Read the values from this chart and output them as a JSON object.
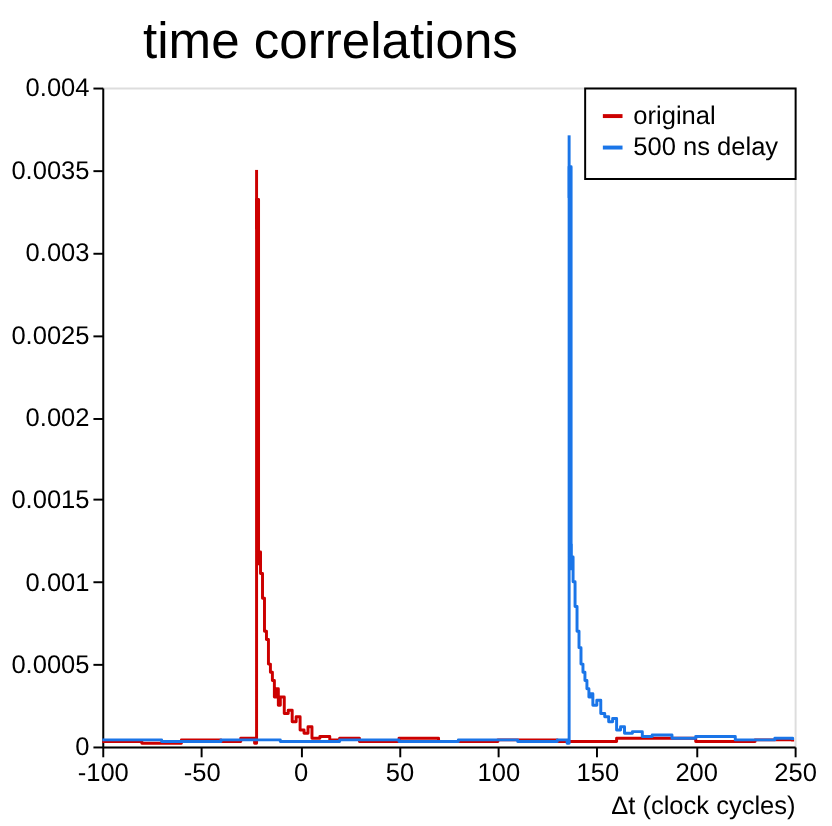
{
  "chart_data": {
    "type": "step",
    "title": "time correlations",
    "xlabel": "Δt (clock cycles)",
    "xlim": [
      -100,
      250
    ],
    "xticks": [
      -100,
      -50,
      0,
      50,
      100,
      150,
      200,
      250
    ],
    "ylim": [
      0,
      0.004
    ],
    "yticks": [
      0,
      0.0005,
      0.001,
      0.0015,
      0.002,
      0.0025,
      0.003,
      0.0035,
      0.004
    ],
    "grid": false,
    "legend": "top right",
    "series": [
      {
        "name": "original",
        "color": "#cc0000",
        "x": [
          -100,
          -80,
          -60,
          -40,
          -30,
          -23,
          -22,
          -21,
          -20,
          -19,
          -18,
          -17,
          -16,
          -15,
          -14,
          -13,
          -12,
          -11,
          -10,
          -8,
          -6,
          -4,
          -2,
          0,
          2,
          4,
          6,
          10,
          15,
          20,
          30,
          50,
          70,
          100,
          130,
          160,
          200,
          230,
          249
        ],
        "values": [
          3e-05,
          2e-05,
          4e-05,
          3e-05,
          5e-05,
          2e-05,
          0.00332,
          0.00118,
          0.00105,
          0.0009,
          0.0007,
          0.00065,
          0.0005,
          0.00045,
          0.0004,
          0.0003,
          0.00035,
          0.00025,
          0.0003,
          0.0002,
          0.00022,
          0.00015,
          0.00018,
          0.0001,
          8e-05,
          0.00012,
          5e-05,
          6e-05,
          4e-05,
          5e-05,
          3e-05,
          5e-05,
          3e-05,
          4e-05,
          3e-05,
          5e-05,
          3e-05,
          4e-05,
          3e-05
        ],
        "errors": [
          null,
          null,
          null,
          null,
          null,
          null,
          0.00018,
          8e-05,
          null,
          null,
          null,
          null,
          null,
          null,
          null,
          null,
          null,
          null,
          null,
          null,
          null,
          null,
          null,
          null,
          null,
          null,
          null,
          null,
          null,
          null,
          null,
          null,
          null,
          null,
          null,
          null,
          null,
          null,
          null
        ]
      },
      {
        "name": "500 ns delay",
        "color": "#1a75e8",
        "x": [
          -100,
          -70,
          -40,
          -10,
          20,
          50,
          80,
          110,
          130,
          135,
          136,
          137,
          138,
          139,
          140,
          141,
          142,
          143,
          144,
          145,
          146,
          147,
          148,
          150,
          152,
          154,
          156,
          158,
          160,
          162,
          164,
          168,
          173,
          178,
          188,
          200,
          220,
          240,
          249
        ],
        "values": [
          4e-05,
          3e-05,
          4e-05,
          3e-05,
          4e-05,
          3e-05,
          4e-05,
          3e-05,
          4e-05,
          2e-05,
          0.00352,
          0.00115,
          0.001,
          0.00085,
          0.0007,
          0.0006,
          0.0005,
          0.00045,
          0.0004,
          0.00035,
          0.0003,
          0.00032,
          0.00025,
          0.00028,
          0.0002,
          0.00018,
          0.00015,
          0.00017,
          0.0001,
          0.00012,
          8e-05,
          9e-05,
          6e-05,
          7e-05,
          5e-05,
          6e-05,
          4e-05,
          5e-05,
          4e-05
        ],
        "errors": [
          null,
          null,
          null,
          null,
          null,
          null,
          null,
          null,
          null,
          null,
          0.00019,
          8e-05,
          null,
          null,
          null,
          null,
          null,
          null,
          null,
          null,
          null,
          null,
          null,
          null,
          null,
          null,
          null,
          null,
          null,
          null,
          null,
          null,
          null,
          null,
          null,
          null,
          null,
          null,
          null
        ]
      }
    ]
  }
}
